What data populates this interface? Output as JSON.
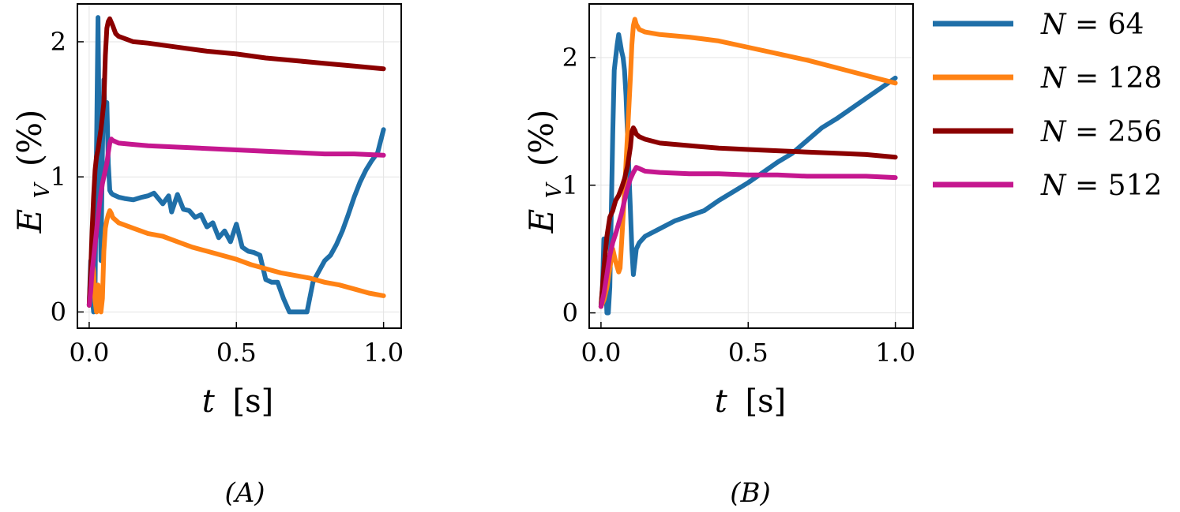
{
  "chart_data": [
    {
      "type": "line",
      "panel_label": "(A)",
      "xlabel": {
        "symbol": "t",
        "unit": "[s]"
      },
      "ylabel": {
        "symbol": "E",
        "subscript": "V",
        "unit": "(%)"
      },
      "xlim": [
        -0.04,
        1.06
      ],
      "ylim": [
        -0.12,
        2.28
      ],
      "xticks": [
        {
          "v": 0,
          "label": "0.0"
        },
        {
          "v": 0.5,
          "label": "0.5"
        },
        {
          "v": 1.0,
          "label": "1.0"
        }
      ],
      "yticks": [
        {
          "v": 0,
          "label": "0"
        },
        {
          "v": 1,
          "label": "1"
        },
        {
          "v": 2,
          "label": "2"
        }
      ],
      "grid": true,
      "series": [
        {
          "name": "N = 64",
          "color": "#1f6fa8",
          "x": [
            0,
            0.005,
            0.01,
            0.015,
            0.02,
            0.025,
            0.03,
            0.035,
            0.04,
            0.045,
            0.05,
            0.055,
            0.06,
            0.065,
            0.07,
            0.075,
            0.08,
            0.1,
            0.12,
            0.15,
            0.18,
            0.2,
            0.22,
            0.25,
            0.27,
            0.28,
            0.3,
            0.32,
            0.34,
            0.36,
            0.38,
            0.4,
            0.42,
            0.44,
            0.46,
            0.48,
            0.5,
            0.52,
            0.54,
            0.56,
            0.58,
            0.6,
            0.62,
            0.64,
            0.66,
            0.68,
            0.7,
            0.72,
            0.74,
            0.76,
            0.78,
            0.8,
            0.82,
            0.84,
            0.86,
            0.88,
            0.9,
            0.92,
            0.94,
            0.96,
            0.98,
            1.0
          ],
          "values": [
            0.05,
            0.38,
            0.12,
            0.0,
            0.2,
            1.2,
            2.18,
            1.0,
            0.38,
            1.2,
            1.72,
            1.35,
            1.55,
            1.1,
            0.9,
            0.88,
            0.87,
            0.85,
            0.84,
            0.83,
            0.85,
            0.86,
            0.88,
            0.8,
            0.86,
            0.74,
            0.87,
            0.76,
            0.75,
            0.7,
            0.72,
            0.63,
            0.66,
            0.55,
            0.6,
            0.52,
            0.65,
            0.48,
            0.45,
            0.44,
            0.42,
            0.24,
            0.22,
            0.22,
            0.1,
            0.0,
            0.0,
            0.0,
            0.0,
            0.22,
            0.3,
            0.38,
            0.42,
            0.5,
            0.6,
            0.72,
            0.85,
            0.96,
            1.05,
            1.12,
            1.18,
            1.35
          ]
        },
        {
          "name": "N = 128",
          "color": "#ff8214",
          "x": [
            0,
            0.005,
            0.01,
            0.015,
            0.02,
            0.025,
            0.03,
            0.035,
            0.04,
            0.045,
            0.05,
            0.055,
            0.06,
            0.065,
            0.07,
            0.075,
            0.08,
            0.1,
            0.15,
            0.2,
            0.25,
            0.3,
            0.35,
            0.4,
            0.45,
            0.5,
            0.55,
            0.6,
            0.65,
            0.7,
            0.75,
            0.8,
            0.85,
            0.9,
            0.95,
            1.0
          ],
          "values": [
            0.05,
            0.25,
            0.38,
            0.3,
            0.08,
            0.0,
            0.2,
            0.05,
            0.0,
            0.1,
            0.45,
            0.62,
            0.68,
            0.72,
            0.75,
            0.73,
            0.7,
            0.66,
            0.62,
            0.58,
            0.56,
            0.52,
            0.48,
            0.45,
            0.42,
            0.39,
            0.35,
            0.32,
            0.29,
            0.27,
            0.25,
            0.22,
            0.2,
            0.17,
            0.14,
            0.12
          ]
        },
        {
          "name": "N = 256",
          "color": "#8b0000",
          "x": [
            0,
            0.005,
            0.01,
            0.015,
            0.02,
            0.025,
            0.03,
            0.035,
            0.04,
            0.045,
            0.05,
            0.055,
            0.06,
            0.065,
            0.07,
            0.08,
            0.09,
            0.1,
            0.15,
            0.2,
            0.3,
            0.4,
            0.5,
            0.6,
            0.7,
            0.8,
            0.9,
            1.0
          ],
          "values": [
            0.05,
            0.3,
            0.6,
            0.85,
            1.05,
            1.15,
            1.2,
            1.28,
            1.35,
            1.45,
            1.55,
            1.9,
            2.1,
            2.15,
            2.17,
            2.12,
            2.06,
            2.04,
            2.0,
            1.99,
            1.96,
            1.93,
            1.91,
            1.88,
            1.86,
            1.84,
            1.82,
            1.8
          ]
        },
        {
          "name": "N = 512",
          "color": "#c5178f",
          "x": [
            0,
            0.005,
            0.01,
            0.015,
            0.02,
            0.025,
            0.03,
            0.035,
            0.04,
            0.045,
            0.05,
            0.055,
            0.06,
            0.065,
            0.07,
            0.075,
            0.08,
            0.1,
            0.15,
            0.2,
            0.3,
            0.4,
            0.5,
            0.6,
            0.7,
            0.8,
            0.9,
            1.0
          ],
          "values": [
            0.05,
            0.15,
            0.3,
            0.4,
            0.5,
            0.6,
            0.7,
            0.8,
            0.88,
            0.95,
            1.0,
            1.05,
            1.1,
            1.18,
            1.25,
            1.28,
            1.27,
            1.25,
            1.24,
            1.23,
            1.22,
            1.21,
            1.2,
            1.19,
            1.18,
            1.17,
            1.17,
            1.16
          ]
        }
      ]
    },
    {
      "type": "line",
      "panel_label": "(B)",
      "xlabel": {
        "symbol": "t",
        "unit": "[s]"
      },
      "ylabel": {
        "symbol": "E",
        "subscript": "V",
        "unit": "(%)"
      },
      "xlim": [
        -0.04,
        1.06
      ],
      "ylim": [
        -0.12,
        2.42
      ],
      "xticks": [
        {
          "v": 0,
          "label": "0.0"
        },
        {
          "v": 0.5,
          "label": "0.5"
        },
        {
          "v": 1.0,
          "label": "1.0"
        }
      ],
      "yticks": [
        {
          "v": 0,
          "label": "0"
        },
        {
          "v": 1,
          "label": "1"
        },
        {
          "v": 2,
          "label": "2"
        }
      ],
      "grid": true,
      "series": [
        {
          "name": "N = 64",
          "color": "#1f6fa8",
          "x": [
            0,
            0.005,
            0.01,
            0.015,
            0.02,
            0.025,
            0.03,
            0.035,
            0.04,
            0.045,
            0.05,
            0.055,
            0.06,
            0.065,
            0.07,
            0.075,
            0.08,
            0.085,
            0.09,
            0.095,
            0.1,
            0.105,
            0.11,
            0.115,
            0.12,
            0.13,
            0.15,
            0.2,
            0.25,
            0.3,
            0.35,
            0.4,
            0.45,
            0.5,
            0.55,
            0.6,
            0.65,
            0.7,
            0.75,
            0.8,
            0.85,
            0.9,
            0.95,
            1.0
          ],
          "values": [
            0.05,
            0.2,
            0.58,
            0.3,
            0.0,
            0.0,
            0.2,
            0.8,
            1.4,
            1.9,
            2.0,
            2.1,
            2.18,
            2.12,
            2.05,
            2.0,
            1.9,
            1.7,
            1.4,
            1.1,
            0.8,
            0.5,
            0.3,
            0.4,
            0.5,
            0.55,
            0.6,
            0.66,
            0.72,
            0.76,
            0.8,
            0.88,
            0.95,
            1.02,
            1.1,
            1.18,
            1.25,
            1.35,
            1.45,
            1.52,
            1.6,
            1.68,
            1.76,
            1.84
          ]
        },
        {
          "name": "N = 128",
          "color": "#ff8214",
          "x": [
            0,
            0.01,
            0.02,
            0.03,
            0.04,
            0.05,
            0.06,
            0.065,
            0.07,
            0.08,
            0.09,
            0.1,
            0.105,
            0.11,
            0.115,
            0.12,
            0.13,
            0.15,
            0.2,
            0.3,
            0.4,
            0.5,
            0.6,
            0.7,
            0.8,
            0.9,
            1.0
          ],
          "values": [
            0.05,
            0.1,
            0.2,
            0.35,
            0.5,
            0.4,
            0.32,
            0.35,
            0.55,
            0.95,
            1.4,
            1.85,
            2.1,
            2.25,
            2.3,
            2.26,
            2.22,
            2.2,
            2.18,
            2.16,
            2.13,
            2.08,
            2.03,
            1.98,
            1.92,
            1.86,
            1.8
          ]
        },
        {
          "name": "N = 256",
          "color": "#8b0000",
          "x": [
            0,
            0.01,
            0.02,
            0.03,
            0.04,
            0.05,
            0.06,
            0.07,
            0.08,
            0.09,
            0.1,
            0.105,
            0.11,
            0.115,
            0.12,
            0.13,
            0.15,
            0.2,
            0.3,
            0.4,
            0.5,
            0.6,
            0.7,
            0.8,
            0.9,
            1.0
          ],
          "values": [
            0.05,
            0.35,
            0.6,
            0.75,
            0.8,
            0.88,
            0.92,
            0.98,
            1.05,
            1.15,
            1.3,
            1.42,
            1.45,
            1.43,
            1.4,
            1.38,
            1.36,
            1.33,
            1.31,
            1.29,
            1.28,
            1.27,
            1.26,
            1.25,
            1.24,
            1.22
          ]
        },
        {
          "name": "N = 512",
          "color": "#c5178f",
          "x": [
            0,
            0.01,
            0.02,
            0.03,
            0.04,
            0.05,
            0.06,
            0.07,
            0.08,
            0.09,
            0.1,
            0.11,
            0.12,
            0.13,
            0.15,
            0.2,
            0.3,
            0.4,
            0.5,
            0.6,
            0.7,
            0.8,
            0.9,
            1.0
          ],
          "values": [
            0.05,
            0.15,
            0.3,
            0.45,
            0.55,
            0.62,
            0.7,
            0.78,
            0.88,
            0.98,
            1.05,
            1.1,
            1.14,
            1.13,
            1.11,
            1.1,
            1.09,
            1.09,
            1.08,
            1.08,
            1.07,
            1.07,
            1.07,
            1.06
          ]
        }
      ]
    }
  ],
  "legend": {
    "placement": "right",
    "entries": [
      {
        "var": "N",
        "eq": " = ",
        "num": "64",
        "color": "#1f6fa8"
      },
      {
        "var": "N",
        "eq": " = ",
        "num": "128",
        "color": "#ff8214"
      },
      {
        "var": "N",
        "eq": " = ",
        "num": "256",
        "color": "#8b0000"
      },
      {
        "var": "N",
        "eq": " = ",
        "num": "512",
        "color": "#c5178f"
      }
    ]
  }
}
